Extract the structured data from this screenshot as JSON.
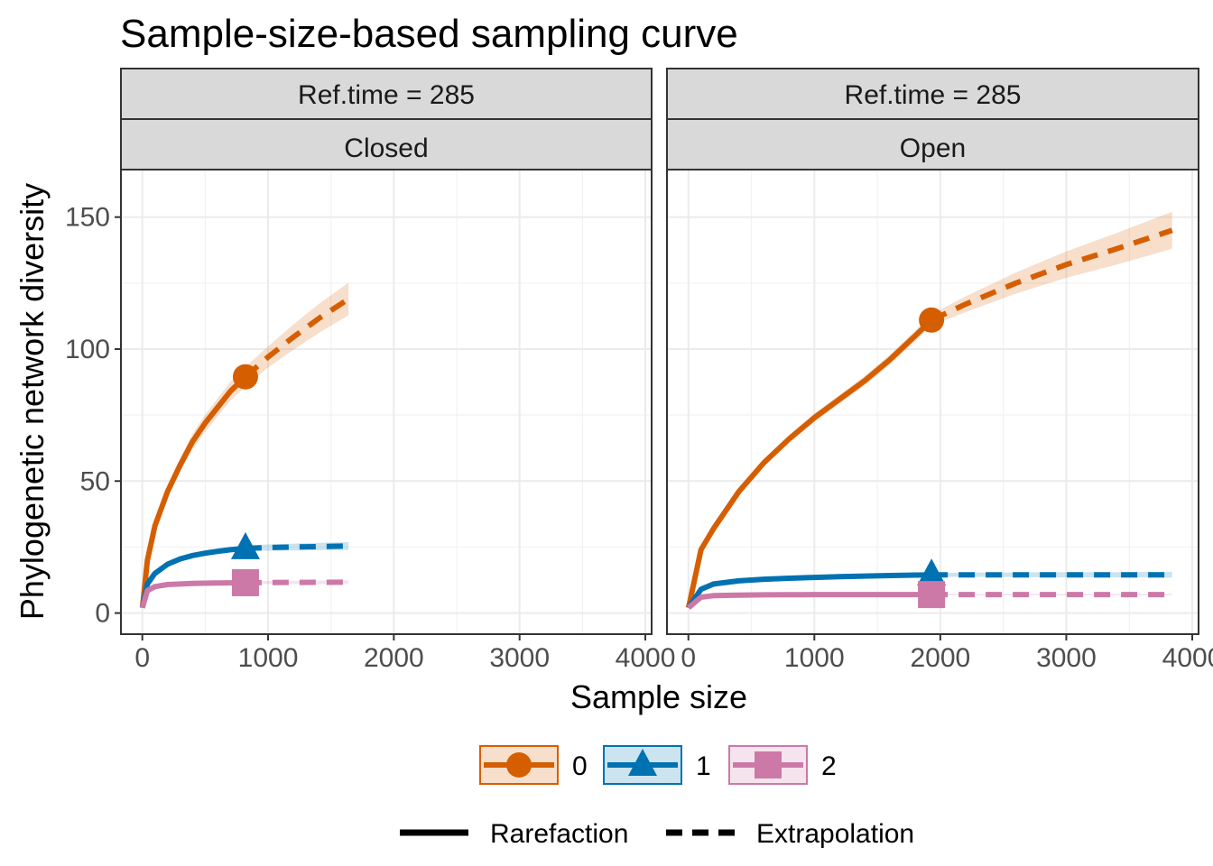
{
  "chart_data": {
    "type": "line",
    "title": "Sample-size-based sampling curve",
    "xlabel": "Sample size",
    "ylabel": "Phylogenetic network diversity",
    "xlim": [
      -170,
      4050
    ],
    "ylim": [
      -8,
      168
    ],
    "x_ticks": [
      0,
      1000,
      2000,
      3000,
      4000
    ],
    "x_tick_labels": [
      "0",
      "1000",
      "2000",
      "3000",
      "4000"
    ],
    "y_ticks": [
      0,
      50,
      100,
      150
    ],
    "y_tick_labels": [
      "0",
      "50",
      "100",
      "150"
    ],
    "grid": true,
    "legend_position": "bottom",
    "panels": [
      {
        "strip_top": "Ref.time = 285",
        "strip_bottom": "Closed",
        "series": [
          {
            "name": "0",
            "color": "#d55e00",
            "marker": "circle",
            "reference": {
              "x": 820,
              "y": 89.5
            },
            "rarefaction": {
              "x": [
                1,
                40,
                100,
                200,
                300,
                400,
                500,
                600,
                700,
                820
              ],
              "y": [
                2,
                20,
                33,
                46,
                56,
                65,
                72,
                78,
                84,
                89.5
              ]
            },
            "extrapolation": {
              "x": [
                820,
                1000,
                1200,
                1400,
                1640
              ],
              "y": [
                89.5,
                97,
                104.5,
                111.5,
                119
              ]
            },
            "ci_halfwidth": [
              0,
              1,
              1.5,
              2,
              2.5,
              3,
              3.2,
              3.4,
              3.6,
              3.8,
              4,
              4.8,
              5.5,
              6.2,
              7
            ]
          },
          {
            "name": "1",
            "color": "#0072b2",
            "marker": "triangle",
            "reference": {
              "x": 820,
              "y": 24.5
            },
            "rarefaction": {
              "x": [
                1,
                40,
                100,
                200,
                300,
                400,
                500,
                600,
                700,
                820
              ],
              "y": [
                2,
                11,
                15,
                18.5,
                20.5,
                21.8,
                22.7,
                23.4,
                24,
                24.5
              ]
            },
            "extrapolation": {
              "x": [
                820,
                1000,
                1200,
                1400,
                1640
              ],
              "y": [
                24.5,
                24.8,
                25,
                25.2,
                25.4
              ]
            },
            "ci_halfwidth": [
              0,
              0.5,
              0.6,
              0.7,
              0.8,
              0.9,
              1,
              1,
              1,
              1.1,
              1.2,
              1.3,
              1.4,
              1.5,
              1.6
            ]
          },
          {
            "name": "2",
            "color": "#cc79a7",
            "marker": "square",
            "reference": {
              "x": 820,
              "y": 11.5
            },
            "rarefaction": {
              "x": [
                1,
                40,
                100,
                200,
                300,
                400,
                500,
                600,
                700,
                820
              ],
              "y": [
                2,
                8.5,
                10,
                10.8,
                11,
                11.2,
                11.3,
                11.4,
                11.45,
                11.5
              ]
            },
            "extrapolation": {
              "x": [
                820,
                1000,
                1200,
                1400,
                1640
              ],
              "y": [
                11.5,
                11.55,
                11.6,
                11.65,
                11.7
              ]
            },
            "ci_halfwidth": [
              0,
              0.3,
              0.4,
              0.4,
              0.5,
              0.5,
              0.5,
              0.5,
              0.5,
              0.6,
              0.6,
              0.6,
              0.7,
              0.7,
              0.7
            ]
          }
        ]
      },
      {
        "strip_top": "Ref.time = 285",
        "strip_bottom": "Open",
        "series": [
          {
            "name": "0",
            "color": "#d55e00",
            "marker": "circle",
            "reference": {
              "x": 1930,
              "y": 111
            },
            "rarefaction": {
              "x": [
                1,
                100,
                200,
                400,
                600,
                800,
                1000,
                1200,
                1400,
                1600,
                1800,
                1930
              ],
              "y": [
                2,
                24,
                32,
                46,
                57,
                66,
                74,
                81,
                88,
                96,
                105,
                111
              ]
            },
            "extrapolation": {
              "x": [
                1930,
                2200,
                2600,
                3000,
                3400,
                3840
              ],
              "y": [
                111,
                117,
                125,
                132,
                138,
                145
              ]
            },
            "ci_halfwidth": [
              0,
              0.8,
              1,
              1.2,
              1.4,
              1.5,
              1.6,
              1.7,
              1.8,
              1.9,
              2,
              2.2,
              3,
              4,
              5,
              6,
              7,
              8
            ]
          },
          {
            "name": "1",
            "color": "#0072b2",
            "marker": "triangle",
            "reference": {
              "x": 1930,
              "y": 14.5
            },
            "rarefaction": {
              "x": [
                1,
                100,
                200,
                400,
                600,
                800,
                1000,
                1200,
                1400,
                1600,
                1800,
                1930
              ],
              "y": [
                2,
                9,
                11,
                12.2,
                12.8,
                13.2,
                13.5,
                13.8,
                14,
                14.2,
                14.4,
                14.5
              ]
            },
            "extrapolation": {
              "x": [
                1930,
                2200,
                2600,
                3000,
                3400,
                3840
              ],
              "y": [
                14.5,
                14.5,
                14.5,
                14.5,
                14.5,
                14.5
              ]
            },
            "ci_halfwidth": [
              0,
              0.4,
              0.5,
              0.5,
              0.6,
              0.6,
              0.6,
              0.6,
              0.7,
              0.7,
              0.7,
              0.7,
              0.8,
              0.9,
              1,
              1,
              1.1,
              1.2
            ]
          },
          {
            "name": "2",
            "color": "#cc79a7",
            "marker": "square",
            "reference": {
              "x": 1930,
              "y": 7
            },
            "rarefaction": {
              "x": [
                1,
                100,
                200,
                400,
                600,
                800,
                1000,
                1200,
                1400,
                1600,
                1800,
                1930
              ],
              "y": [
                2,
                6,
                6.6,
                6.8,
                6.9,
                6.95,
                7,
                7,
                7,
                7,
                7,
                7
              ]
            },
            "extrapolation": {
              "x": [
                1930,
                2200,
                2600,
                3000,
                3400,
                3840
              ],
              "y": [
                7,
                7,
                7,
                7,
                7,
                7
              ]
            },
            "ci_halfwidth": [
              0,
              0.3,
              0.3,
              0.3,
              0.3,
              0.3,
              0.3,
              0.3,
              0.3,
              0.3,
              0.3,
              0.3,
              0.3,
              0.3,
              0.3,
              0.3,
              0.3,
              0.3
            ]
          }
        ]
      }
    ],
    "legend_order": [
      "0",
      "1",
      "2"
    ],
    "linetype_legend": [
      {
        "label": "Rarefaction",
        "dash": "solid"
      },
      {
        "label": "Extrapolation",
        "dash": "dashed"
      }
    ]
  }
}
